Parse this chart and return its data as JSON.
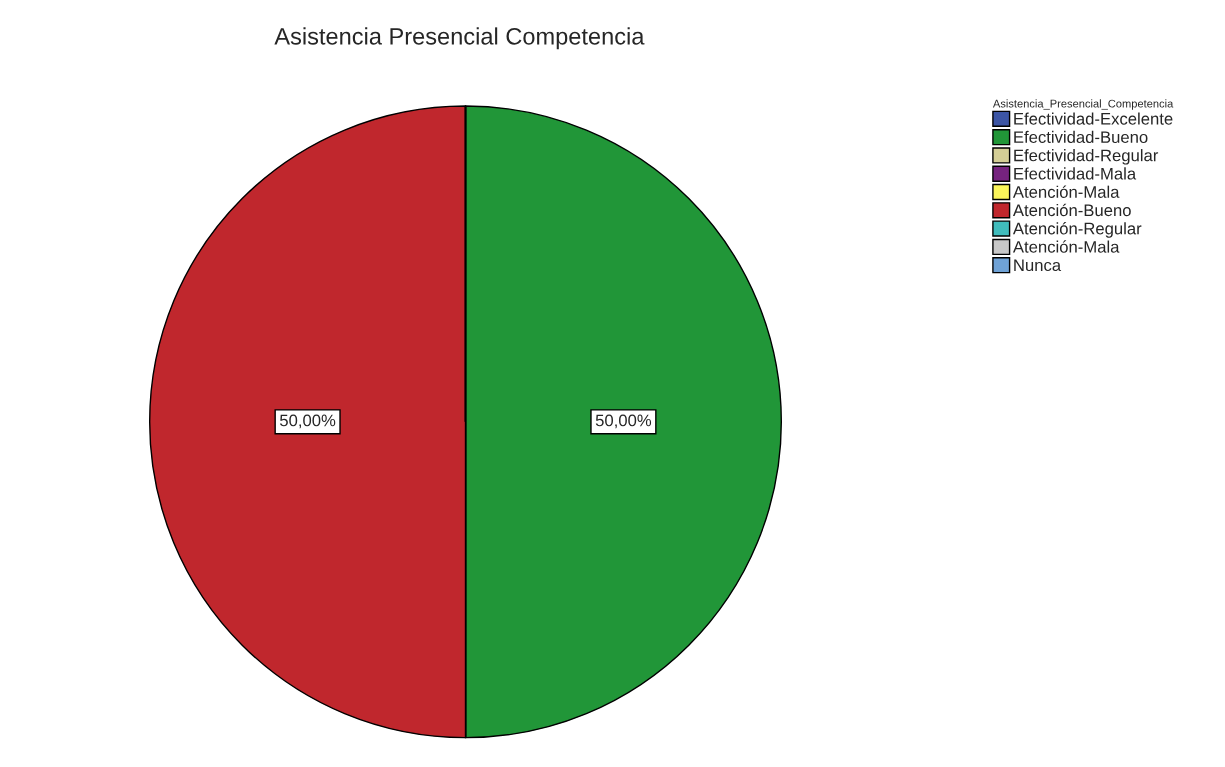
{
  "chart_data": {
    "type": "pie",
    "title": "Asistencia Presencial Competencia",
    "legend_title": "Asistencia_Presencial_Competencia",
    "categories": [
      "Efectividad-Excelente",
      "Efectividad-Bueno",
      "Efectividad-Regular",
      "Efectividad-Mala",
      "Atención-Mala",
      "Atención-Bueno",
      "Atención-Regular",
      "Atención-Mala",
      "Nunca"
    ],
    "values": [
      0,
      50,
      0,
      0,
      0,
      50,
      0,
      0,
      0
    ],
    "colors": [
      "#3c55a5",
      "#219638",
      "#d4ce96",
      "#76237f",
      "#fbf55a",
      "#c0272d",
      "#40bcbc",
      "#c8c8c8",
      "#6fa2d6"
    ],
    "value_labels": [
      null,
      "50,00%",
      null,
      null,
      null,
      "50,00%",
      null,
      null,
      null
    ],
    "legend": "top right"
  }
}
